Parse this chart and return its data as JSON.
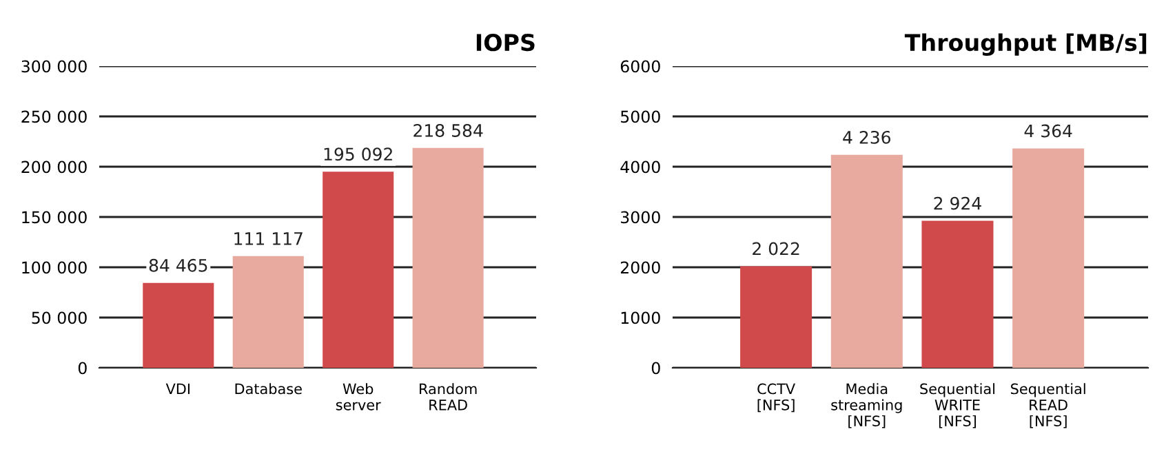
{
  "chart_data": [
    {
      "type": "bar",
      "title": "IOPS",
      "categories": [
        "VDI",
        "Database",
        "Web\nserver",
        "Random\nREAD"
      ],
      "values": [
        84465,
        111117,
        195092,
        218584
      ],
      "colors": [
        "#d0494b",
        "#e8aa9f",
        "#d0494b",
        "#e8aa9f"
      ],
      "value_labels": [
        "84 465",
        "111 117",
        "195 092",
        "218 584"
      ],
      "ylim": [
        0,
        300000
      ],
      "yticks": [
        0,
        {
          "value": 50000,
          "label": "50 000"
        },
        {
          "value": 100000,
          "label": "100 000"
        },
        {
          "value": 150000,
          "label": "150 000"
        },
        {
          "value": 200000,
          "label": "200 000"
        },
        {
          "value": 250000,
          "label": "250 000"
        },
        {
          "value": 300000,
          "label": "300 000"
        }
      ],
      "grid": "y",
      "legend": false
    },
    {
      "type": "bar",
      "title": "Throughput [MB/s]",
      "categories": [
        "CCTV\n[NFS]",
        "Media\nstreaming\n[NFS]",
        "Sequential\nWRITE\n[NFS]",
        "Sequential\nREAD\n[NFS]"
      ],
      "values": [
        2022,
        4236,
        2924,
        4364
      ],
      "colors": [
        "#d0494b",
        "#e8aa9f",
        "#d0494b",
        "#e8aa9f"
      ],
      "value_labels": [
        "2 022",
        "4 236",
        "2 924",
        "4 364"
      ],
      "ylim": [
        0,
        6000
      ],
      "yticks": [
        0,
        1000,
        2000,
        3000,
        4000,
        5000,
        6000
      ],
      "grid": "y",
      "legend": false
    }
  ]
}
